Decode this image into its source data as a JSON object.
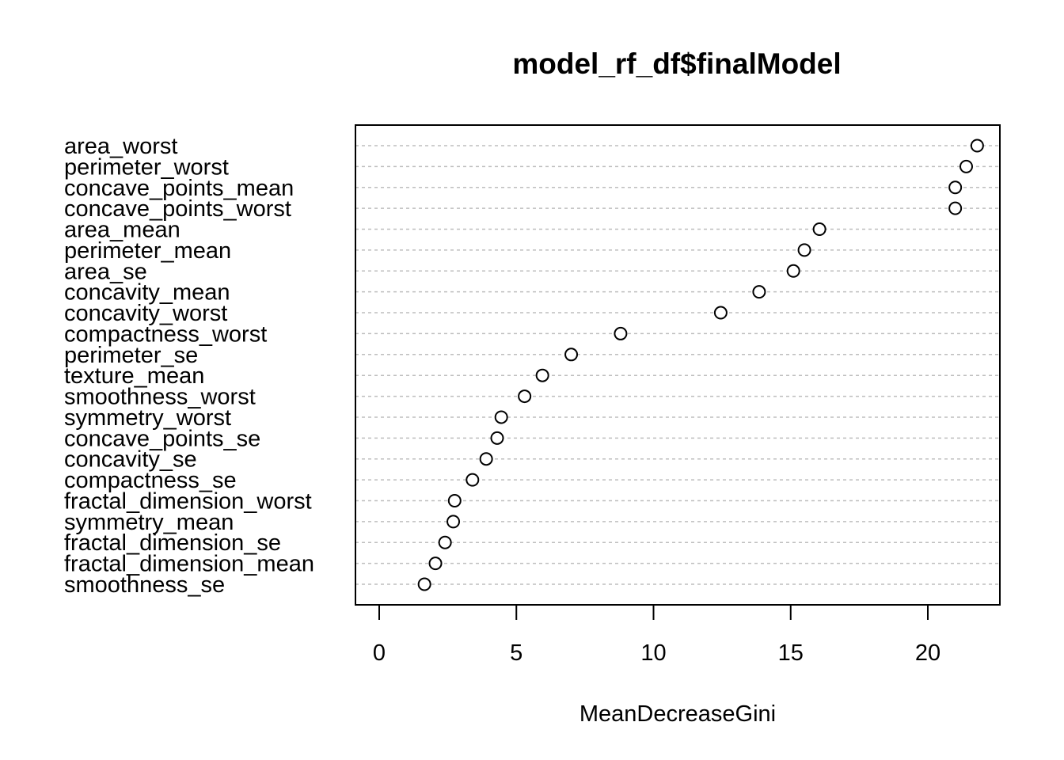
{
  "chart_data": {
    "type": "scatter",
    "title": "model_rf_df$finalModel",
    "xlabel": "MeanDecreaseGini",
    "ylabel": "",
    "xlim": [
      -0.9,
      22.6
    ],
    "xticks": [
      0,
      5,
      10,
      15,
      20
    ],
    "grid": "horizontal dashed",
    "points": [
      {
        "label": "area_worst",
        "value": 21.8
      },
      {
        "label": "perimeter_worst",
        "value": 21.4
      },
      {
        "label": "concave_points_mean",
        "value": 21.0
      },
      {
        "label": "concave_points_worst",
        "value": 21.0
      },
      {
        "label": "area_mean",
        "value": 16.05
      },
      {
        "label": "perimeter_mean",
        "value": 15.5
      },
      {
        "label": "area_se",
        "value": 15.1
      },
      {
        "label": "concavity_mean",
        "value": 13.85
      },
      {
        "label": "concavity_worst",
        "value": 12.45
      },
      {
        "label": "compactness_worst",
        "value": 8.8
      },
      {
        "label": "perimeter_se",
        "value": 7.0
      },
      {
        "label": "texture_mean",
        "value": 5.95
      },
      {
        "label": "smoothness_worst",
        "value": 5.3
      },
      {
        "label": "symmetry_worst",
        "value": 4.45
      },
      {
        "label": "concave_points_se",
        "value": 4.3
      },
      {
        "label": "concavity_se",
        "value": 3.9
      },
      {
        "label": "compactness_se",
        "value": 3.4
      },
      {
        "label": "fractal_dimension_worst",
        "value": 2.75
      },
      {
        "label": "symmetry_mean",
        "value": 2.7
      },
      {
        "label": "fractal_dimension_se",
        "value": 2.4
      },
      {
        "label": "fractal_dimension_mean",
        "value": 2.05
      },
      {
        "label": "smoothness_se",
        "value": 1.65
      }
    ]
  }
}
